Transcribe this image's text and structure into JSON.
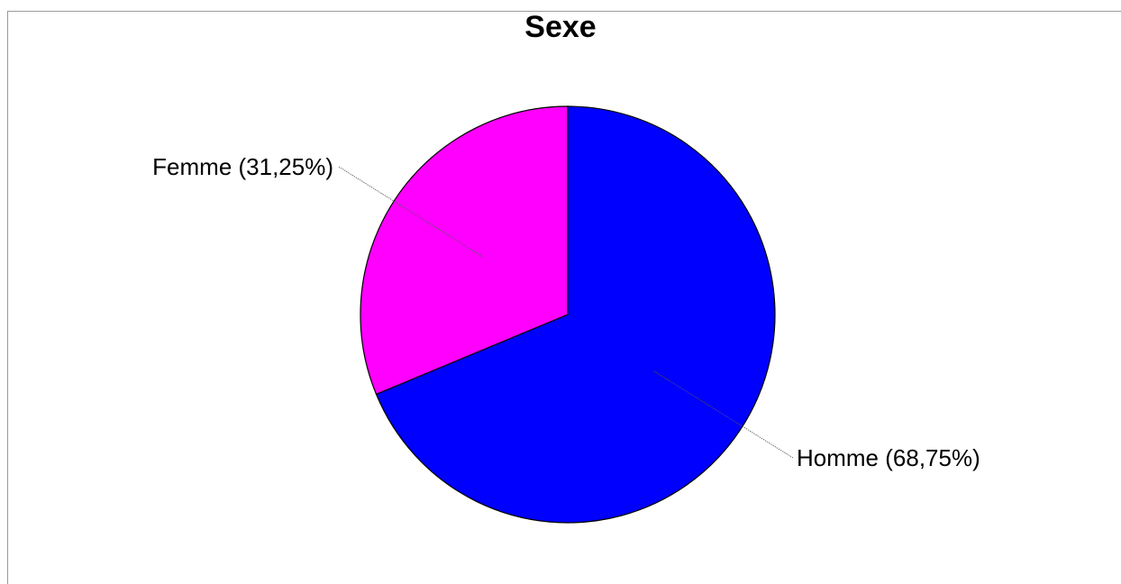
{
  "chart_data": {
    "type": "pie",
    "title": "Sexe",
    "slices": [
      {
        "label": "Homme (68,75%)",
        "category": "Homme",
        "value": 68.75,
        "color": "#0000FF"
      },
      {
        "label": "Femme (31,25%)",
        "category": "Femme",
        "value": 31.25,
        "color": "#FF00FF"
      }
    ],
    "start": "12 o'clock",
    "direction": "clockwise",
    "legend": "none",
    "labels": "outside with leader lines"
  }
}
